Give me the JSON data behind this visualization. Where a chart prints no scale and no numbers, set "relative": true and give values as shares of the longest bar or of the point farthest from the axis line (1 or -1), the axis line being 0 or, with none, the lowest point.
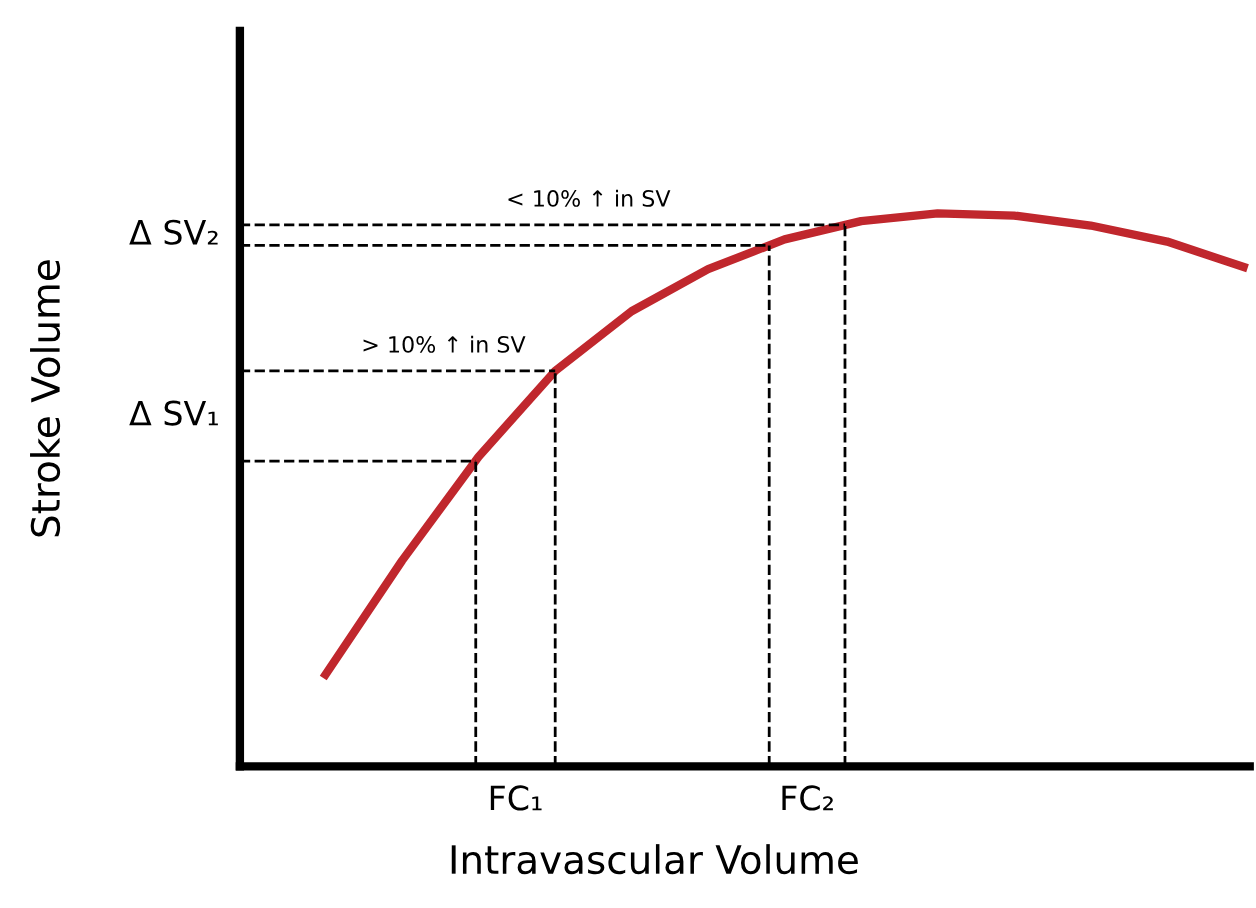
{
  "chart_data": {
    "type": "line",
    "relative": true,
    "xlabel": "Intravascular Volume",
    "ylabel": "Stroke Volume",
    "categories": [
      null,
      null,
      null,
      null,
      null,
      null,
      null,
      null,
      null,
      null,
      null,
      null,
      null
    ],
    "series": [
      {
        "color": "#c0272d",
        "values": [
          0.166,
          0.372,
          0.56,
          0.715,
          0.823,
          0.899,
          0.953,
          0.986,
          1.0,
          0.996,
          0.978,
          0.949,
          0.903
        ]
      }
    ],
    "ref_lines": [
      {
        "axis": "y",
        "value": 0.552,
        "label": null,
        "line_style": "dashed",
        "color": "#000000"
      },
      {
        "axis": "y",
        "value": 0.715,
        "label": "> 10% ↑ in SV",
        "line_style": "dashed",
        "color": "#000000"
      },
      {
        "axis": "y",
        "value": 0.942,
        "label": null,
        "line_style": "dashed",
        "color": "#000000"
      },
      {
        "axis": "y",
        "value": 0.979,
        "label": "< 10% ↑ in SV",
        "line_style": "dashed",
        "color": "#000000"
      }
    ],
    "annotations": [
      "Δ SV₁",
      "Δ SV₂",
      "FC₁",
      "FC₂"
    ],
    "marker": "none",
    "line_style": "solid"
  }
}
